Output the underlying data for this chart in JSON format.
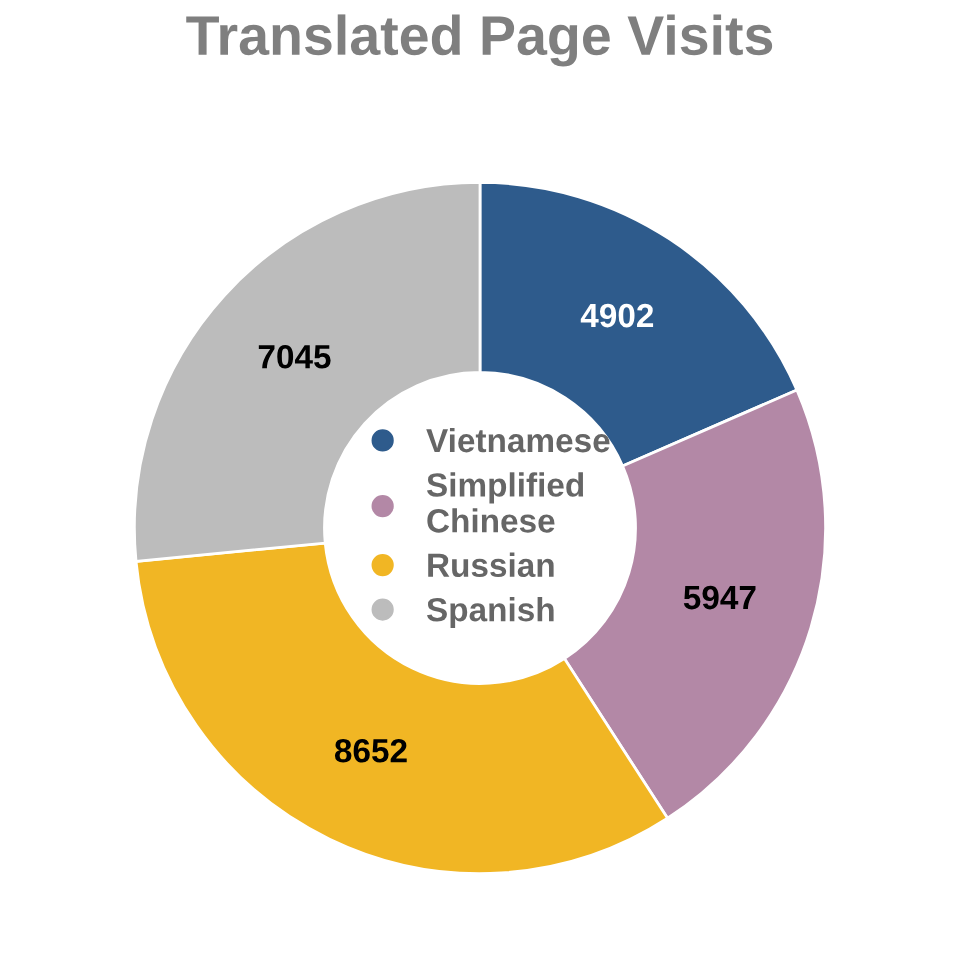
{
  "chart_data": {
    "type": "donut",
    "title": "Translated Page Visits",
    "categories": [
      "Vietnamese",
      "Simplified Chinese",
      "Russian",
      "Spanish"
    ],
    "values": [
      4902,
      5947,
      8652,
      7045
    ],
    "colors": [
      "#2e5b8c",
      "#b388a6",
      "#f1b624",
      "#bcbcbc"
    ],
    "data_labels": true,
    "legend": "center"
  }
}
